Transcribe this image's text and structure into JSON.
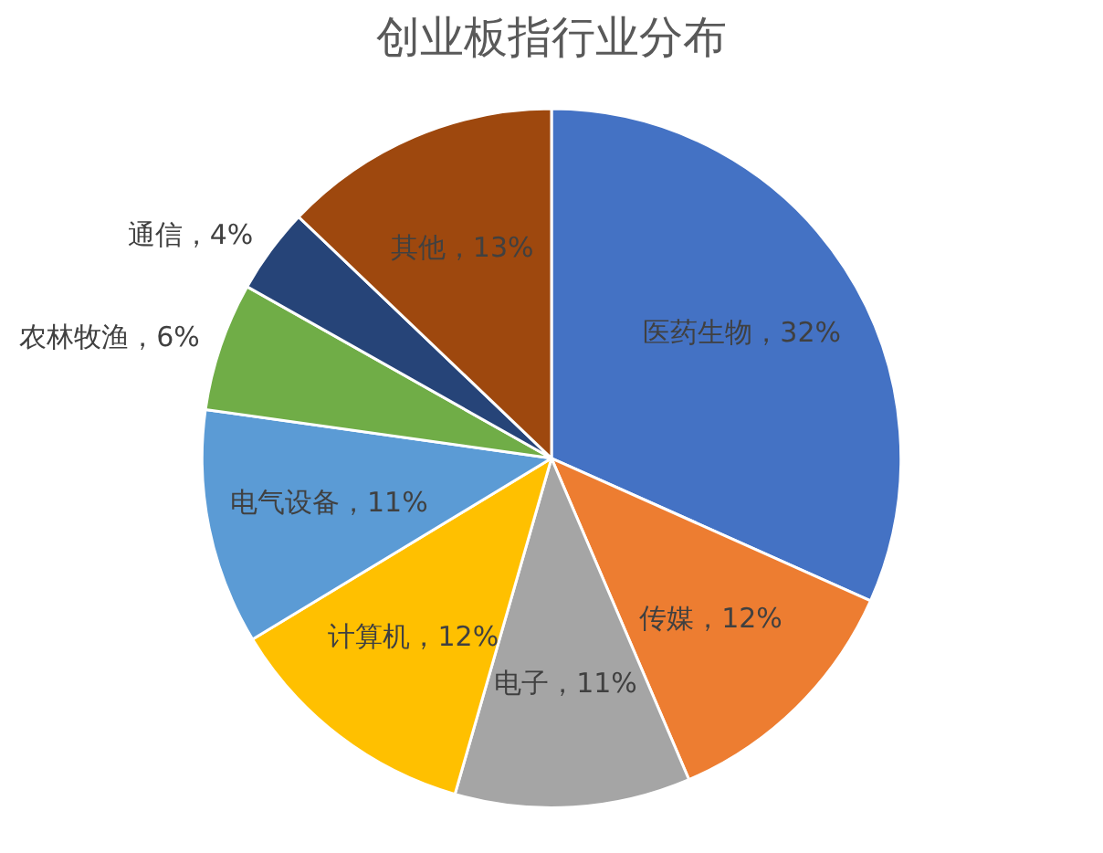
{
  "chart_data": {
    "type": "pie",
    "title": "创业板指行业分布",
    "categories": [
      "医药生物",
      "传媒",
      "电子",
      "计算机",
      "电气设备",
      "农林牧渔",
      "通信",
      "其他"
    ],
    "values": [
      32,
      12,
      11,
      12,
      11,
      6,
      4,
      13
    ],
    "colors": [
      "#4472c4",
      "#ed7d31",
      "#a5a5a5",
      "#ffc000",
      "#5b9bd5",
      "#70ad47",
      "#264478",
      "#9e480e"
    ],
    "value_labels": [
      "，32%",
      "，12%",
      "，11%",
      "，12%",
      "，11%",
      "，6%",
      "，4%",
      "，13%"
    ],
    "legend": false
  }
}
